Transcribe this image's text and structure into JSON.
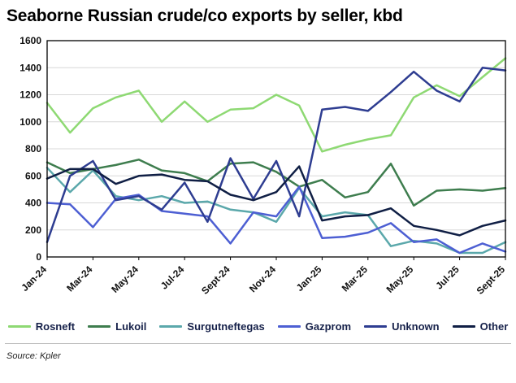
{
  "title": "Seaborne Russian crude/co exports by seller, kbd",
  "source": "Source: Kpler",
  "chart_data": {
    "type": "line",
    "x": [
      "Jan-24",
      "Feb-24",
      "Mar-24",
      "Apr-24",
      "May-24",
      "Jun-24",
      "Jul-24",
      "Aug-24",
      "Sept-24",
      "Oct-24",
      "Nov-24",
      "Dec-24",
      "Jan-25",
      "Feb-25",
      "Mar-25",
      "Apr-25",
      "May-25",
      "Jun-25",
      "Jul-25",
      "Aug-25",
      "Sept-25"
    ],
    "x_tick_labels": [
      "Jan-24",
      "Mar-24",
      "May-24",
      "Jul-24",
      "Sept-24",
      "Nov-24",
      "Jan-25",
      "Mar-25",
      "May-25",
      "Jul-25",
      "Sept-25"
    ],
    "ylim": [
      0,
      1600
    ],
    "yticks": [
      0,
      200,
      400,
      600,
      800,
      1000,
      1200,
      1400,
      1600
    ],
    "grid": "horizontal",
    "legend_position": "bottom",
    "series": [
      {
        "name": "Rosneft",
        "color": "#8ed973",
        "values": [
          1140,
          920,
          1100,
          1180,
          1230,
          1000,
          1150,
          1000,
          1090,
          1100,
          1200,
          1120,
          780,
          830,
          870,
          900,
          1180,
          1270,
          1190,
          1330,
          1470
        ]
      },
      {
        "name": "Lukoil",
        "color": "#3e7d4e",
        "values": [
          700,
          620,
          650,
          680,
          720,
          640,
          620,
          560,
          690,
          700,
          630,
          520,
          570,
          440,
          480,
          690,
          380,
          490,
          500,
          490,
          510
        ]
      },
      {
        "name": "Surgutneftegas",
        "color": "#5ba8ab",
        "values": [
          660,
          480,
          640,
          450,
          420,
          450,
          400,
          410,
          350,
          330,
          260,
          510,
          300,
          330,
          310,
          80,
          120,
          100,
          30,
          30,
          110
        ]
      },
      {
        "name": "Gazprom",
        "color": "#4d5fd3",
        "values": [
          400,
          390,
          220,
          430,
          460,
          340,
          320,
          300,
          100,
          330,
          300,
          520,
          140,
          150,
          180,
          250,
          110,
          130,
          30,
          100,
          40
        ]
      },
      {
        "name": "Unknown",
        "color": "#2e3d91",
        "values": [
          110,
          600,
          710,
          420,
          450,
          350,
          550,
          260,
          730,
          430,
          710,
          300,
          1090,
          1110,
          1080,
          1220,
          1370,
          1230,
          1150,
          1400,
          1380
        ]
      },
      {
        "name": "Other",
        "color": "#101f45",
        "values": [
          580,
          650,
          650,
          540,
          600,
          610,
          570,
          560,
          460,
          420,
          480,
          670,
          270,
          300,
          310,
          360,
          230,
          200,
          160,
          230,
          270
        ]
      }
    ]
  }
}
